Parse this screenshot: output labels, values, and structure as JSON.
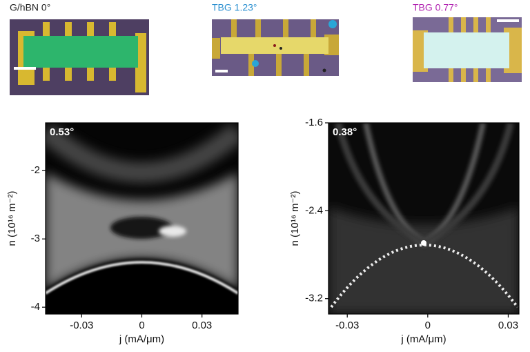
{
  "panels": [
    {
      "label": "G/hBN 0°",
      "color": "#222222"
    },
    {
      "label": "TBG 1.23°",
      "color": "#2a8fd0"
    },
    {
      "label": "TBG 0.77°",
      "color": "#b020b0"
    }
  ],
  "chart_data": [
    {
      "type": "heatmap",
      "annotation": "0.53°",
      "xlabel": "j (mA/μm)",
      "ylabel": "n (10¹⁶ m⁻²)",
      "xlim": [
        -0.048,
        0.048
      ],
      "xticks": [
        -0.03,
        0,
        0.03
      ],
      "ylim": [
        -4.1,
        -1.3
      ],
      "yticks": [
        -4,
        -3,
        -2
      ]
    },
    {
      "type": "heatmap",
      "annotation": "0.38°",
      "xlabel": "j (mA/μm)",
      "ylabel": "n (10¹⁶ m⁻²)",
      "xlim": [
        -0.037,
        0.034
      ],
      "xticks": [
        -0.03,
        0,
        0.03
      ],
      "ylim": [
        -3.34,
        -1.6
      ],
      "yticks": [
        -3.2,
        -2.4,
        -1.6
      ]
    }
  ]
}
